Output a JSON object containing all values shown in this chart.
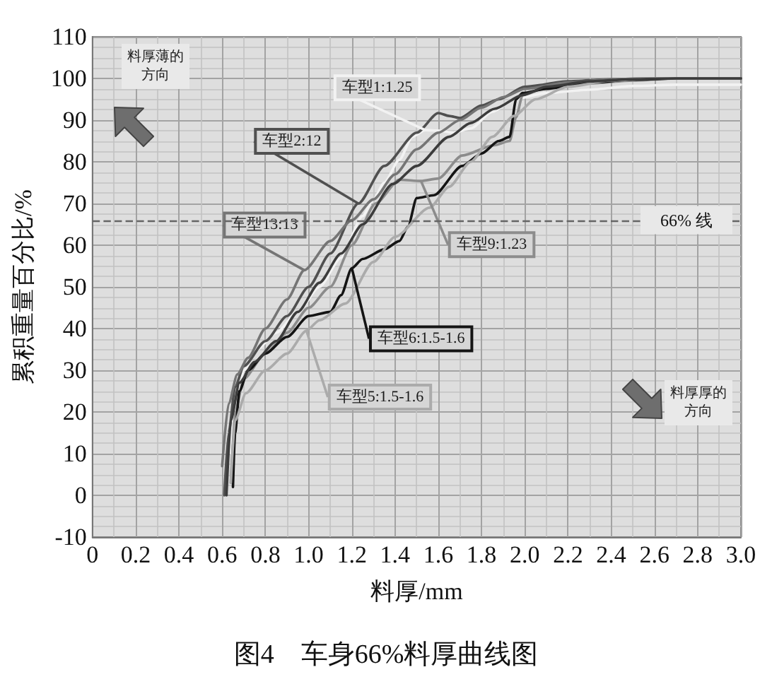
{
  "chart_data": {
    "type": "line",
    "title": "图4　车身66%料厚曲线图",
    "xlabel": "料厚/mm",
    "ylabel": "累积重量百分比/%",
    "annotations": [
      "料厚薄的方向",
      "料厚厚的方向"
    ],
    "xlim": [
      0,
      3
    ],
    "ylim": [
      -10,
      110
    ],
    "xticks": [
      0,
      0.2,
      0.4,
      0.6,
      0.8,
      {
        "value": 1,
        "label": "1.0"
      },
      1.2,
      1.4,
      1.6,
      1.8,
      {
        "value": 2,
        "label": "2.0"
      },
      2.2,
      2.4,
      2.6,
      2.8,
      {
        "value": 3,
        "label": "3.0"
      }
    ],
    "yticks": [
      -10,
      0,
      10,
      20,
      30,
      40,
      50,
      60,
      70,
      80,
      90,
      100,
      110
    ],
    "grid": true,
    "marker": "none",
    "line_style": "solid",
    "ref_lines": [
      {
        "axis": "y",
        "value": 66,
        "label": "66% 线",
        "color": "#666666",
        "line_style": "dashed"
      }
    ],
    "series": [
      {
        "name": "车型1:1.25",
        "color": "#f2f2f2",
        "x": [
          0.64,
          0.66,
          0.7,
          0.76,
          0.85,
          0.95,
          1.05,
          1.15,
          1.25,
          1.3,
          1.35,
          1.42,
          1.48,
          1.54,
          1.6,
          1.67,
          1.75,
          1.85,
          1.95,
          2.1,
          2.3,
          2.5,
          2.7,
          3.0
        ],
        "values": [
          10,
          20,
          30,
          35,
          39,
          44,
          50,
          57,
          67,
          71,
          75,
          80.5,
          86,
          87.6,
          87.5,
          87,
          88,
          92,
          95,
          96.5,
          97.3,
          98.2,
          98.5,
          98.5
        ]
      },
      {
        "name": "车型2:12",
        "color": "#505050",
        "x": [
          0.61,
          0.63,
          0.66,
          0.7,
          0.8,
          0.9,
          1.0,
          1.1,
          1.23,
          1.35,
          1.5,
          1.6,
          1.65,
          1.7,
          1.8,
          1.88,
          2.0,
          2.2,
          2.4,
          2.6,
          3.0
        ],
        "values": [
          0,
          15,
          26,
          31,
          37,
          43,
          50,
          58,
          70,
          79,
          87,
          91.7,
          91,
          90.5,
          93.5,
          95,
          98,
          99.3,
          99.8,
          100,
          100
        ]
      },
      {
        "name": "车型13:13",
        "color": "#757575",
        "x": [
          0.6,
          0.63,
          0.67,
          0.72,
          0.8,
          0.9,
          0.98,
          1.1,
          1.2,
          1.3,
          1.4,
          1.5,
          1.6,
          1.7,
          1.8,
          1.9,
          2.0,
          2.2,
          2.4,
          2.6,
          3.0
        ],
        "values": [
          7,
          22,
          29,
          33,
          40,
          47,
          54,
          61,
          66,
          71,
          77,
          83,
          87,
          90,
          93,
          95.5,
          97.5,
          99,
          99.8,
          100,
          100
        ]
      },
      {
        "name": "车型9:1.23",
        "color": "#8c8c8c",
        "x": [
          0.64,
          0.66,
          0.7,
          0.8,
          0.9,
          1.0,
          1.1,
          1.2,
          1.31,
          1.42,
          1.52,
          1.6,
          1.71,
          1.86,
          1.93,
          1.96,
          1.99,
          2.1,
          2.3,
          2.5,
          2.7,
          3.0
        ],
        "values": [
          3,
          20,
          28,
          34,
          39,
          45,
          50,
          60,
          70,
          75.7,
          75.4,
          76,
          81.5,
          84,
          85,
          90.7,
          96,
          97.8,
          98.8,
          99.5,
          100,
          100
        ]
      },
      {
        "name": "车型6:1.5-1.6",
        "color": "#151515",
        "x": [
          0.65,
          0.66,
          0.68,
          0.72,
          0.8,
          0.9,
          1.0,
          1.1,
          1.15,
          1.2,
          1.25,
          1.35,
          1.42,
          1.46,
          1.5,
          1.58,
          1.71,
          1.8,
          1.88,
          1.93,
          1.96,
          1.99,
          2.1,
          2.3,
          2.5,
          2.7,
          3.0
        ],
        "values": [
          2,
          15,
          25,
          30,
          34,
          38,
          43,
          44,
          48,
          54.5,
          56.7,
          59,
          61,
          64.5,
          71.3,
          72,
          79,
          82,
          85,
          86,
          95,
          96.5,
          97.5,
          99,
          99.7,
          100,
          100
        ]
      },
      {
        "name": "车型5:1.5-1.6",
        "color": "#ababab",
        "x": [
          0.64,
          0.66,
          0.71,
          0.8,
          0.9,
          0.99,
          1.05,
          1.17,
          1.3,
          1.4,
          1.56,
          1.65,
          1.75,
          1.85,
          1.95,
          2.05,
          2.2,
          2.4,
          2.6,
          3.0
        ],
        "values": [
          3,
          18,
          24.5,
          30,
          34,
          39.5,
          42,
          46,
          56,
          62,
          69,
          74,
          80,
          86,
          91,
          95,
          98,
          99.5,
          100,
          100
        ]
      },
      {
        "color": "#3c3c3c",
        "x": [
          0.62,
          0.64,
          0.68,
          0.75,
          0.85,
          0.95,
          1.05,
          1.15,
          1.25,
          1.39,
          1.5,
          1.65,
          1.75,
          1.86,
          1.99,
          2.1,
          2.3,
          2.5,
          2.7,
          3.0
        ],
        "values": [
          0,
          18,
          27,
          32,
          37,
          44,
          51,
          58,
          65,
          74.7,
          79,
          86,
          89.3,
          92.7,
          96,
          98,
          99.3,
          99.8,
          100,
          100
        ]
      }
    ]
  }
}
